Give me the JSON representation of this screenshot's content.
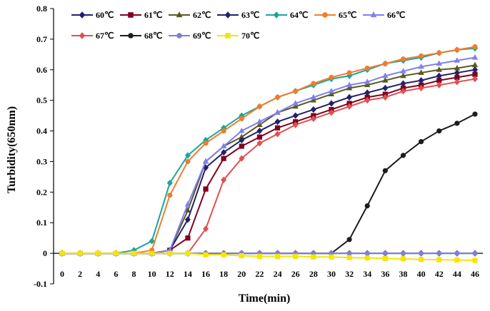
{
  "chart_data": {
    "type": "line",
    "title": "",
    "xlabel": "Time(min)",
    "ylabel": "Turbidity(650nm)",
    "xlim": [
      0,
      46
    ],
    "ylim": [
      -0.1,
      0.8
    ],
    "x": [
      0,
      2,
      4,
      6,
      8,
      10,
      12,
      14,
      16,
      18,
      20,
      22,
      24,
      26,
      28,
      30,
      32,
      34,
      36,
      38,
      40,
      42,
      44,
      46
    ],
    "x_tick_labels": [
      "0",
      "2",
      "4",
      "6",
      "8",
      "10",
      "12",
      "14",
      "16",
      "18",
      "20",
      "22",
      "24",
      "26",
      "28",
      "30",
      "32",
      "34",
      "36",
      "38",
      "40",
      "42",
      "44",
      "46"
    ],
    "y_tick_labels": [
      "-0.1",
      "0",
      "0.1",
      "0.2",
      "0.3",
      "0.4",
      "0.5",
      "0.6",
      "0.7",
      "0.8"
    ],
    "y_ticks": [
      -0.1,
      0,
      0.1,
      0.2,
      0.3,
      0.4,
      0.5,
      0.6,
      0.7,
      0.8
    ],
    "legend_position": "top",
    "series": [
      {
        "name": "60℃",
        "color": "#1f1f7a",
        "marker": "diamond",
        "values": [
          0,
          0,
          0,
          0,
          0,
          0,
          0,
          0,
          0,
          0,
          0,
          0,
          0,
          0,
          0,
          0,
          0,
          0,
          0,
          0,
          0,
          0,
          0,
          0
        ]
      },
      {
        "name": "61℃",
        "color": "#800020",
        "marker": "square",
        "values": [
          0,
          0,
          0,
          0,
          0,
          0,
          0.01,
          0.05,
          0.21,
          0.31,
          0.35,
          0.38,
          0.41,
          0.43,
          0.45,
          0.47,
          0.49,
          0.51,
          0.52,
          0.54,
          0.55,
          0.565,
          0.575,
          0.585
        ]
      },
      {
        "name": "62℃",
        "color": "#5a5a1e",
        "marker": "triangle",
        "values": [
          0,
          0,
          0,
          0,
          0,
          0,
          0.01,
          0.14,
          0.3,
          0.35,
          0.38,
          0.42,
          0.46,
          0.48,
          0.5,
          0.52,
          0.54,
          0.55,
          0.565,
          0.58,
          0.59,
          0.6,
          0.605,
          0.615
        ]
      },
      {
        "name": "63℃",
        "color": "#22226b",
        "marker": "diamond",
        "values": [
          0,
          0,
          0,
          0,
          0,
          0,
          0.01,
          0.11,
          0.28,
          0.33,
          0.37,
          0.4,
          0.43,
          0.45,
          0.47,
          0.49,
          0.51,
          0.525,
          0.54,
          0.555,
          0.565,
          0.58,
          0.59,
          0.6
        ]
      },
      {
        "name": "64℃",
        "color": "#1aa69a",
        "marker": "diamond",
        "values": [
          0,
          0,
          0,
          0,
          0.01,
          0.04,
          0.23,
          0.32,
          0.37,
          0.41,
          0.45,
          0.48,
          0.51,
          0.53,
          0.55,
          0.57,
          0.58,
          0.6,
          0.62,
          0.63,
          0.64,
          0.655,
          0.665,
          0.67
        ]
      },
      {
        "name": "65℃",
        "color": "#ef7d2e",
        "marker": "circle",
        "values": [
          0,
          0,
          0,
          0,
          0,
          0.01,
          0.19,
          0.3,
          0.36,
          0.4,
          0.44,
          0.48,
          0.51,
          0.53,
          0.555,
          0.575,
          0.59,
          0.605,
          0.62,
          0.635,
          0.645,
          0.655,
          0.665,
          0.675
        ]
      },
      {
        "name": "66℃",
        "color": "#8080ef",
        "marker": "triangle",
        "values": [
          0,
          0,
          0,
          0,
          0,
          0,
          0.01,
          0.16,
          0.3,
          0.35,
          0.4,
          0.43,
          0.46,
          0.49,
          0.51,
          0.53,
          0.55,
          0.56,
          0.58,
          0.595,
          0.61,
          0.62,
          0.63,
          0.64
        ]
      },
      {
        "name": "67℃",
        "color": "#e05050",
        "marker": "diamond",
        "values": [
          0,
          0,
          0,
          0,
          0,
          0,
          0,
          0,
          0.08,
          0.24,
          0.31,
          0.36,
          0.39,
          0.42,
          0.44,
          0.46,
          0.48,
          0.5,
          0.51,
          0.53,
          0.54,
          0.55,
          0.56,
          0.57
        ]
      },
      {
        "name": "68℃",
        "color": "#1c1c1c",
        "marker": "circle",
        "values": [
          0,
          0,
          0,
          0,
          0,
          0,
          0,
          0,
          0,
          0,
          0,
          0,
          0,
          0,
          0,
          0,
          0.045,
          0.155,
          0.27,
          0.32,
          0.365,
          0.4,
          0.425,
          0.455
        ]
      },
      {
        "name": "69℃",
        "color": "#7f80d0",
        "marker": "circle",
        "values": [
          0,
          0,
          0,
          0,
          0,
          0,
          0,
          0,
          0,
          0,
          0,
          0,
          0,
          0,
          0,
          0,
          0,
          0,
          0,
          0,
          0,
          0,
          0,
          0
        ]
      },
      {
        "name": "70℃",
        "color": "#f5e600",
        "marker": "square",
        "values": [
          0,
          0,
          0,
          0,
          0,
          0,
          0,
          0,
          -0.005,
          -0.005,
          -0.008,
          -0.01,
          -0.01,
          -0.01,
          -0.012,
          -0.012,
          -0.014,
          -0.015,
          -0.017,
          -0.018,
          -0.02,
          -0.021,
          -0.022,
          -0.023
        ]
      }
    ]
  }
}
